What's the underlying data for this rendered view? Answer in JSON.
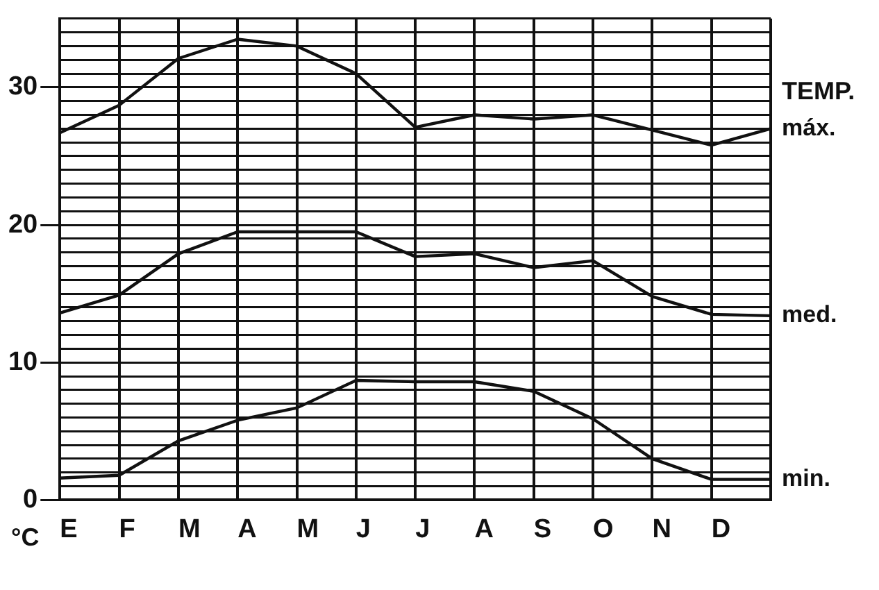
{
  "chart_data": {
    "type": "line",
    "title": "TEMP.",
    "ylabel": "°C",
    "categories": [
      "E",
      "F",
      "M",
      "A",
      "M",
      "J",
      "J",
      "A",
      "S",
      "O",
      "N",
      "D",
      null
    ],
    "series": [
      {
        "name": "máx.",
        "color": "#111111",
        "values": [
          26.7,
          28.7,
          32.1,
          33.5,
          33.0,
          31.0,
          27.1,
          28.0,
          27.7,
          28.0,
          26.9,
          25.8,
          27.0
        ]
      },
      {
        "name": "med.",
        "color": "#111111",
        "values": [
          13.6,
          14.9,
          17.9,
          19.5,
          19.5,
          19.5,
          17.7,
          17.9,
          16.9,
          17.4,
          14.8,
          13.5,
          13.4
        ]
      },
      {
        "name": "min.",
        "color": "#111111",
        "values": [
          1.6,
          1.8,
          4.3,
          5.8,
          6.7,
          8.7,
          8.6,
          8.6,
          7.9,
          5.9,
          3.0,
          1.5,
          1.5
        ]
      }
    ],
    "ylim": [
      0,
      35
    ],
    "yticks": [
      0,
      {
        "value": 1,
        "label": null
      },
      {
        "value": 2,
        "label": null
      },
      {
        "value": 3,
        "label": null
      },
      {
        "value": 4,
        "label": null
      },
      {
        "value": 5,
        "label": null
      },
      {
        "value": 6,
        "label": null
      },
      {
        "value": 7,
        "label": null
      },
      {
        "value": 8,
        "label": null
      },
      {
        "value": 9,
        "label": null
      },
      10,
      {
        "value": 11,
        "label": null
      },
      {
        "value": 12,
        "label": null
      },
      {
        "value": 13,
        "label": null
      },
      {
        "value": 14,
        "label": null
      },
      {
        "value": 15,
        "label": null
      },
      {
        "value": 16,
        "label": null
      },
      {
        "value": 17,
        "label": null
      },
      {
        "value": 18,
        "label": null
      },
      {
        "value": 19,
        "label": null
      },
      20,
      {
        "value": 21,
        "label": null
      },
      {
        "value": 22,
        "label": null
      },
      {
        "value": 23,
        "label": null
      },
      {
        "value": 24,
        "label": null
      },
      {
        "value": 25,
        "label": null
      },
      {
        "value": 26,
        "label": null
      },
      {
        "value": 27,
        "label": null
      },
      {
        "value": 28,
        "label": null
      },
      {
        "value": 29,
        "label": null
      },
      30,
      {
        "value": 31,
        "label": null
      },
      {
        "value": 32,
        "label": null
      },
      {
        "value": 33,
        "label": null
      },
      {
        "value": 34,
        "label": null
      },
      {
        "value": 35,
        "label": null
      }
    ],
    "grid": true,
    "legend": false,
    "marker": "none",
    "line_style": "solid"
  }
}
